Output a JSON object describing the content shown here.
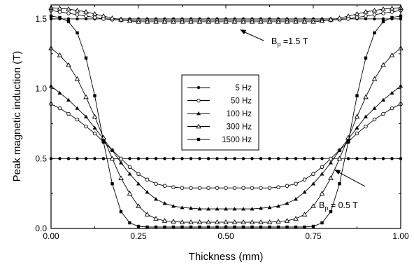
{
  "chart_data": {
    "type": "line",
    "xlabel": "Thickness (mm)",
    "ylabel": "Peak magnetic induction (T)",
    "xlim": [
      0.0,
      1.0
    ],
    "ylim": [
      0.0,
      1.6
    ],
    "xticks": [
      "0.00",
      "0.25",
      "0.50",
      "0.75",
      "1.00"
    ],
    "yticks": [
      "0.0",
      "0.5",
      "1.0",
      "1.5"
    ],
    "x": [
      0.0,
      0.025,
      0.05,
      0.075,
      0.1,
      0.125,
      0.15,
      0.175,
      0.2,
      0.225,
      0.25,
      0.275,
      0.3,
      0.325,
      0.35,
      0.375,
      0.4,
      0.425,
      0.45,
      0.475,
      0.5,
      0.525,
      0.55,
      0.575,
      0.6,
      0.625,
      0.65,
      0.675,
      0.7,
      0.725,
      0.75,
      0.775,
      0.8,
      0.825,
      0.85,
      0.875,
      0.9,
      0.925,
      0.95,
      0.975,
      1.0
    ],
    "legend_position": "center",
    "grid": false,
    "series": [
      {
        "name": "5 Hz",
        "marker": "filled-circle",
        "values": [
          0.5,
          0.5,
          0.5,
          0.5,
          0.5,
          0.5,
          0.5,
          0.5,
          0.5,
          0.5,
          0.5,
          0.5,
          0.5,
          0.5,
          0.5,
          0.5,
          0.5,
          0.5,
          0.5,
          0.5,
          0.5,
          0.5,
          0.5,
          0.5,
          0.5,
          0.5,
          0.5,
          0.5,
          0.5,
          0.5,
          0.5,
          0.5,
          0.5,
          0.5,
          0.5,
          0.5,
          0.5,
          0.5,
          0.5,
          0.5,
          0.5
        ]
      },
      {
        "name": "50 Hz",
        "marker": "open-circle",
        "values": [
          0.89,
          0.86,
          0.82,
          0.78,
          0.73,
          0.68,
          0.62,
          0.56,
          0.5,
          0.44,
          0.39,
          0.35,
          0.32,
          0.305,
          0.295,
          0.29,
          0.29,
          0.29,
          0.29,
          0.29,
          0.29,
          0.29,
          0.29,
          0.29,
          0.29,
          0.29,
          0.295,
          0.305,
          0.32,
          0.35,
          0.39,
          0.44,
          0.5,
          0.56,
          0.62,
          0.68,
          0.73,
          0.78,
          0.82,
          0.86,
          0.89
        ]
      },
      {
        "name": "100 Hz",
        "marker": "filled-triangle",
        "values": [
          1.02,
          0.97,
          0.92,
          0.86,
          0.8,
          0.72,
          0.64,
          0.56,
          0.47,
          0.39,
          0.32,
          0.26,
          0.21,
          0.18,
          0.16,
          0.15,
          0.145,
          0.14,
          0.14,
          0.14,
          0.14,
          0.14,
          0.14,
          0.14,
          0.145,
          0.15,
          0.16,
          0.18,
          0.21,
          0.26,
          0.32,
          0.39,
          0.47,
          0.56,
          0.64,
          0.72,
          0.8,
          0.86,
          0.92,
          0.97,
          1.02
        ]
      },
      {
        "name": "300 Hz",
        "marker": "open-triangle",
        "values": [
          1.29,
          1.24,
          1.17,
          1.07,
          0.94,
          0.8,
          0.65,
          0.5,
          0.36,
          0.25,
          0.16,
          0.1,
          0.07,
          0.055,
          0.05,
          0.045,
          0.045,
          0.045,
          0.045,
          0.045,
          0.045,
          0.045,
          0.045,
          0.045,
          0.045,
          0.045,
          0.05,
          0.055,
          0.07,
          0.1,
          0.16,
          0.25,
          0.36,
          0.5,
          0.65,
          0.8,
          0.94,
          1.07,
          1.17,
          1.24,
          1.29
        ]
      },
      {
        "name": "1500 Hz",
        "marker": "filled-square",
        "values": [
          1.52,
          1.51,
          1.48,
          1.4,
          1.22,
          0.95,
          0.62,
          0.32,
          0.12,
          0.04,
          0.015,
          0.01,
          0.01,
          0.01,
          0.01,
          0.01,
          0.01,
          0.01,
          0.01,
          0.01,
          0.01,
          0.01,
          0.01,
          0.01,
          0.01,
          0.01,
          0.01,
          0.01,
          0.01,
          0.01,
          0.015,
          0.04,
          0.12,
          0.32,
          0.62,
          0.95,
          1.22,
          1.4,
          1.48,
          1.51,
          1.52
        ]
      },
      {
        "name": "",
        "marker": "filled-circle",
        "values": [
          1.5,
          1.5,
          1.5,
          1.5,
          1.5,
          1.5,
          1.5,
          1.5,
          1.5,
          1.5,
          1.5,
          1.5,
          1.5,
          1.5,
          1.5,
          1.5,
          1.5,
          1.5,
          1.5,
          1.5,
          1.5,
          1.5,
          1.5,
          1.5,
          1.5,
          1.5,
          1.5,
          1.5,
          1.5,
          1.5,
          1.5,
          1.5,
          1.5,
          1.5,
          1.5,
          1.5,
          1.5,
          1.5,
          1.5,
          1.5,
          1.5
        ]
      },
      {
        "name": "",
        "marker": "open-circle",
        "values": [
          1.56,
          1.55,
          1.54,
          1.53,
          1.52,
          1.51,
          1.5,
          1.495,
          1.49,
          1.49,
          1.49,
          1.49,
          1.49,
          1.49,
          1.49,
          1.49,
          1.49,
          1.49,
          1.49,
          1.49,
          1.49,
          1.49,
          1.49,
          1.49,
          1.49,
          1.49,
          1.49,
          1.49,
          1.49,
          1.49,
          1.49,
          1.49,
          1.49,
          1.495,
          1.5,
          1.51,
          1.52,
          1.53,
          1.54,
          1.55,
          1.56
        ]
      },
      {
        "name": "",
        "marker": "open-triangle",
        "values": [
          1.58,
          1.575,
          1.57,
          1.56,
          1.55,
          1.535,
          1.52,
          1.505,
          1.495,
          1.485,
          1.48,
          1.48,
          1.48,
          1.48,
          1.48,
          1.48,
          1.48,
          1.48,
          1.48,
          1.48,
          1.48,
          1.48,
          1.48,
          1.48,
          1.48,
          1.48,
          1.48,
          1.48,
          1.48,
          1.48,
          1.48,
          1.485,
          1.495,
          1.505,
          1.52,
          1.535,
          1.55,
          1.56,
          1.57,
          1.575,
          1.58
        ]
      }
    ],
    "annotations": [
      {
        "id": "bp-high",
        "base": "B",
        "sub": "p",
        "tail": " =1.5 T",
        "arrow_to": [
          0.6,
          1.5
        ]
      },
      {
        "id": "bp-low",
        "base": "B",
        "sub": "p",
        "tail": " = 0.5 T",
        "arrow_to": [
          0.8,
          0.5
        ]
      }
    ]
  }
}
